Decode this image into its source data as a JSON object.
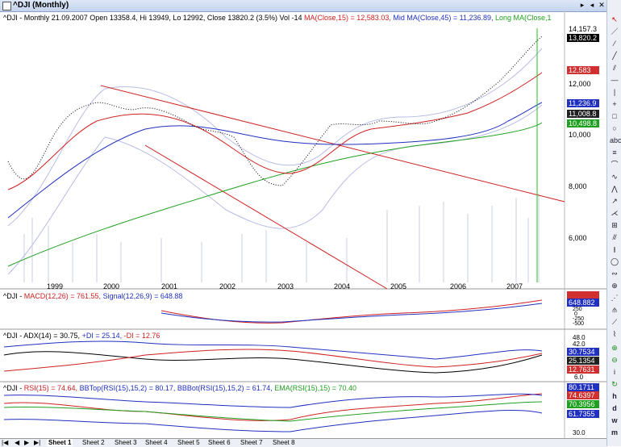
{
  "window": {
    "title": "^DJI (Monthly)",
    "buttons": [
      "▸",
      "◂",
      "✕"
    ]
  },
  "price": {
    "header": {
      "symbol": "^DJI - Monthly 21.09.2007",
      "ohlc": "Open 13358.4, Hi 13949, Lo 12992, Close 13820.2 (3.5%) Vol -14",
      "ma15": "MA(Close,15) = 12,583.03,",
      "mid45": "Mid MA(Close,45) = 11,236.89,",
      "long": "Long MA(Close,1"
    },
    "y_labels": [
      "12,000",
      "10,000",
      "8,000",
      "6,000"
    ],
    "value_tags": [
      {
        "text": "14,157.3",
        "color": "#000000",
        "bg": "#ffffff"
      },
      {
        "text": "13,820.2",
        "color": "#ffffff",
        "bg": "#000000"
      },
      {
        "text": "12,583",
        "color": "#ffffff",
        "bg": "#d03030"
      },
      {
        "text": "11,236.9",
        "color": "#ffffff",
        "bg": "#2030c0"
      },
      {
        "text": "11,008.8",
        "color": "#ffffff",
        "bg": "#202020"
      },
      {
        "text": "10,498.8",
        "color": "#ffffff",
        "bg": "#20a020"
      }
    ],
    "x_labels": [
      "1999",
      "2000",
      "2001",
      "2002",
      "2003",
      "2004",
      "2005",
      "2006",
      "2007"
    ]
  },
  "macd": {
    "header": {
      "sym": "^DJI -",
      "macd": "MACD(12,26) = 761.55,",
      "signal": "Signal(12,26,9) = 648.88"
    },
    "tags": [
      "648.882",
      "250",
      "0",
      "-250",
      "-500"
    ]
  },
  "adx": {
    "header": {
      "sym": "^DJI -",
      "adx": "ADX(14) = 30.75,",
      "pdi": "+DI = 25.14,",
      "mdi": "-DI = 12.76"
    },
    "tags": [
      "48.0",
      "42.0",
      "30.7534",
      "25.1354",
      "12.7631",
      "6.0"
    ]
  },
  "rsi": {
    "header": {
      "sym": "^DJI -",
      "rsi": "RSI(15) = 74.64,",
      "bbtop": "BBTop(RSI(15),15,2) = 80.17,",
      "bbbot": "BBBot(RSI(15),15,2) = 61.74,",
      "ema": "EMA(RSI(15),15) = 70.40"
    },
    "tags": [
      "80.1711",
      "74.6397",
      "70.3956",
      "61.7355",
      "30.0"
    ]
  },
  "sheets": [
    "Sheet 1",
    "Sheet 2",
    "Sheet 3",
    "Sheet 4",
    "Sheet 5",
    "Sheet 6",
    "Sheet 7",
    "Sheet 8"
  ],
  "colors": {
    "ma15": "#d02020",
    "mid": "#2030c0",
    "long": "#20a020",
    "bands": "#9aa0e0",
    "macd": "#d02020",
    "signal": "#2030c0"
  }
}
